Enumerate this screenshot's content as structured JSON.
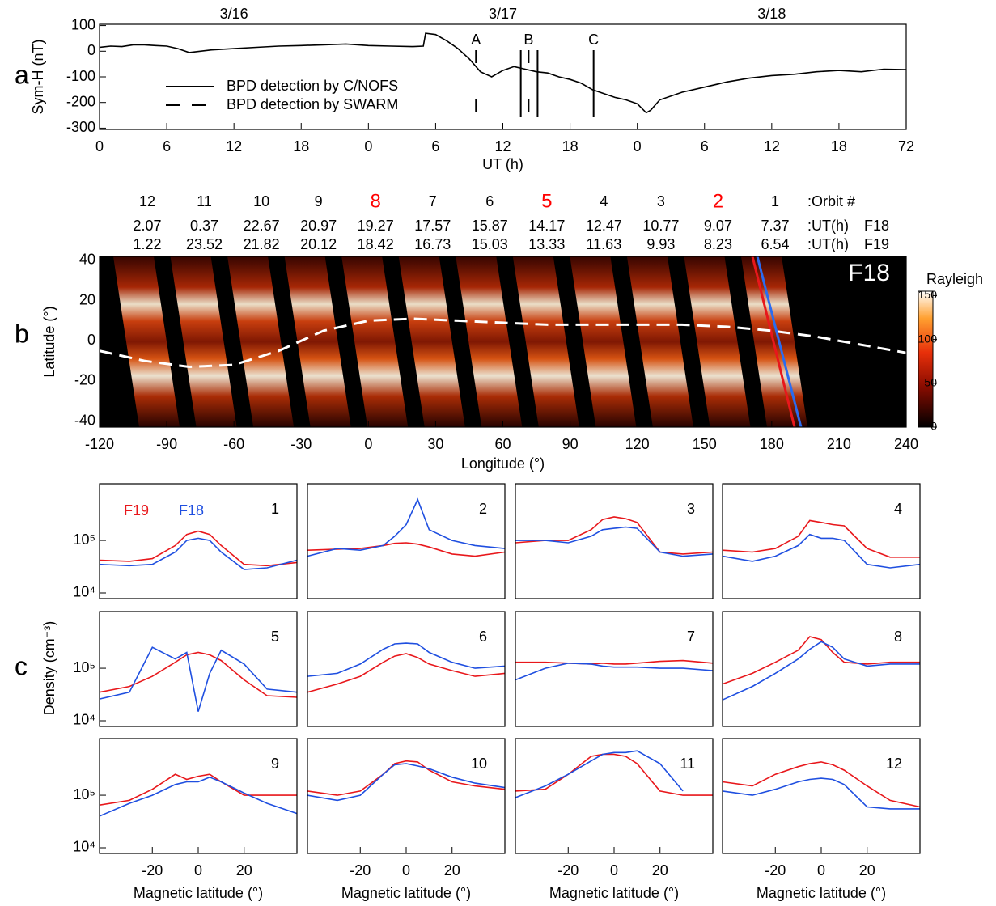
{
  "chart_data": [
    {
      "type": "line",
      "panel_label": "a",
      "y_label": "Sym-H (nT)",
      "x_label": "UT (h)",
      "color": "#000000",
      "x": [
        0,
        1,
        2,
        3,
        4,
        5,
        6,
        7,
        8,
        9,
        10,
        12,
        14,
        16,
        18,
        20,
        22,
        24,
        26,
        28,
        28.9,
        29.1,
        30,
        31,
        32,
        33,
        33.6,
        34,
        35,
        36,
        37,
        38,
        39,
        40,
        41,
        42,
        43,
        44,
        45,
        46,
        47,
        48,
        48.8,
        49.2,
        50,
        52,
        54,
        56,
        58,
        60,
        62,
        64,
        66,
        68,
        70,
        72
      ],
      "values": [
        15,
        20,
        18,
        25,
        25,
        22,
        20,
        10,
        -5,
        0,
        5,
        10,
        15,
        20,
        22,
        25,
        28,
        22,
        20,
        18,
        20,
        70,
        65,
        40,
        10,
        -30,
        -60,
        -80,
        -100,
        -75,
        -60,
        -70,
        -80,
        -85,
        -100,
        -110,
        -125,
        -150,
        -165,
        -180,
        -190,
        -205,
        -240,
        -230,
        -190,
        -160,
        -140,
        -120,
        -105,
        -95,
        -90,
        -80,
        -75,
        -80,
        -70,
        -72
      ],
      "xlim": [
        0,
        72
      ],
      "ylim": [
        -305,
        105
      ],
      "xticks": [
        0,
        6,
        12,
        18,
        {
          "value": 24,
          "label": "0"
        },
        {
          "value": 30,
          "label": "6"
        },
        {
          "value": 36,
          "label": "12"
        },
        {
          "value": 42,
          "label": "18"
        },
        {
          "value": 48,
          "label": "0"
        },
        {
          "value": 54,
          "label": "6"
        },
        {
          "value": 60,
          "label": "12"
        },
        {
          "value": 66,
          "label": "18"
        },
        72
      ],
      "yticks": [
        100,
        0,
        -100,
        -200,
        -300
      ],
      "dates": [
        {
          "label": "3/16",
          "x": 12
        },
        {
          "label": "3/17",
          "x": 36
        },
        {
          "label": "3/18",
          "x": 60
        }
      ],
      "events": [
        {
          "x": 33.6,
          "style": "dashed",
          "label": "A"
        },
        {
          "x": 37.6,
          "style": "solid"
        },
        {
          "x": 38.3,
          "style": "dashed",
          "label": "B"
        },
        {
          "x": 39.1,
          "style": "solid"
        },
        {
          "x": 44.1,
          "style": "solid",
          "label": "C"
        }
      ],
      "legend": [
        {
          "name": "BPD detection by C/NOFS",
          "style": "solid"
        },
        {
          "name": "BPD detection by SWARM",
          "style": "dashed"
        }
      ]
    },
    {
      "type": "map",
      "panel_label": "b",
      "y_label": "Latitude (°)",
      "x_label": "Longitude (°)",
      "inset_label": "F18",
      "xlim": [
        -120,
        240
      ],
      "ylim": [
        -43,
        42
      ],
      "xticks": [
        -120,
        -90,
        -60,
        -30,
        0,
        30,
        60,
        90,
        120,
        150,
        180,
        210,
        240
      ],
      "yticks": [
        40,
        20,
        0,
        -20,
        -40
      ],
      "equator": {
        "lon": [
          -120,
          -100,
          -80,
          -60,
          -40,
          -20,
          0,
          20,
          40,
          60,
          80,
          100,
          120,
          140,
          160,
          180,
          200,
          220,
          240
        ],
        "lat": [
          -5,
          -10,
          -13,
          -12,
          -5,
          5,
          10,
          11,
          10,
          9,
          8,
          8,
          8,
          8,
          7,
          5,
          2,
          -2,
          -6
        ]
      },
      "orbits": [
        12,
        11,
        10,
        9,
        8,
        7,
        6,
        5,
        4,
        3,
        2,
        1
      ],
      "orbit_colors": [
        "#000000",
        "#000000",
        "#000000",
        "#000000",
        "#ff0000",
        "#000000",
        "#000000",
        "#ff0000",
        "#000000",
        "#000000",
        "#ff0000",
        "#000000"
      ],
      "ut_f18": [
        2.07,
        0.37,
        22.67,
        20.97,
        19.27,
        17.57,
        15.87,
        14.17,
        12.47,
        10.77,
        9.07,
        7.37
      ],
      "ut_f19": [
        1.22,
        23.52,
        21.82,
        20.12,
        18.42,
        16.73,
        15.03,
        13.33,
        11.63,
        9.93,
        8.23,
        6.54
      ],
      "row_labels": [
        ":Orbit #",
        ":UT(h)",
        "F18",
        ":UT(h)",
        "F19"
      ],
      "colorbar": {
        "label": "Rayleigh",
        "lim": [
          0,
          155
        ],
        "ticks": [
          0,
          50,
          100,
          150
        ]
      }
    },
    {
      "type": "line",
      "log": true,
      "label": "1",
      "x": [
        -43,
        -30,
        -20,
        -10,
        -5,
        0,
        5,
        10,
        20,
        30,
        43
      ],
      "xlim": [
        -43,
        43
      ],
      "ylim": [
        7800,
        1200000
      ],
      "yticks": [
        {
          "value": 10000,
          "label": "10⁴"
        },
        {
          "value": 100000,
          "label": "10⁵"
        }
      ],
      "series": [
        {
          "name": "F19",
          "color": "#e8171b",
          "values": [
            42000,
            40000,
            45000,
            80000,
            130000,
            150000,
            130000,
            80000,
            35000,
            33000,
            38000
          ]
        },
        {
          "name": "F18",
          "color": "#1f4fe0",
          "values": [
            35000,
            33000,
            35000,
            60000,
            100000,
            110000,
            100000,
            60000,
            28000,
            30000,
            42000
          ]
        }
      ]
    },
    {
      "type": "line",
      "log": true,
      "label": "2",
      "x": [
        -43,
        -30,
        -20,
        -10,
        -5,
        0,
        5,
        10,
        20,
        30,
        43
      ],
      "xlim": [
        -43,
        43
      ],
      "ylim": [
        7800,
        1200000
      ],
      "series": [
        {
          "color": "#e8171b",
          "values": [
            65000,
            68000,
            70000,
            80000,
            88000,
            90000,
            85000,
            75000,
            55000,
            50000,
            60000
          ]
        },
        {
          "color": "#1f4fe0",
          "values": [
            50000,
            70000,
            65000,
            80000,
            120000,
            200000,
            600000,
            160000,
            100000,
            80000,
            70000
          ]
        }
      ]
    },
    {
      "type": "line",
      "log": true,
      "label": "3",
      "x": [
        -43,
        -30,
        -20,
        -10,
        -5,
        0,
        5,
        10,
        20,
        30,
        43
      ],
      "xlim": [
        -43,
        43
      ],
      "ylim": [
        7800,
        1200000
      ],
      "series": [
        {
          "color": "#e8171b",
          "values": [
            90000,
            100000,
            100000,
            160000,
            250000,
            280000,
            260000,
            220000,
            60000,
            55000,
            60000
          ]
        },
        {
          "color": "#1f4fe0",
          "values": [
            100000,
            100000,
            90000,
            120000,
            160000,
            170000,
            180000,
            170000,
            60000,
            50000,
            55000
          ]
        }
      ]
    },
    {
      "type": "line",
      "log": true,
      "label": "4",
      "x": [
        -43,
        -30,
        -20,
        -10,
        -5,
        0,
        5,
        10,
        20,
        30,
        43
      ],
      "xlim": [
        -43,
        43
      ],
      "ylim": [
        7800,
        1200000
      ],
      "series": [
        {
          "color": "#e8171b",
          "values": [
            65000,
            60000,
            70000,
            120000,
            240000,
            220000,
            200000,
            190000,
            70000,
            48000,
            48000
          ]
        },
        {
          "color": "#1f4fe0",
          "values": [
            50000,
            40000,
            50000,
            80000,
            130000,
            110000,
            110000,
            100000,
            35000,
            30000,
            35000
          ]
        }
      ]
    },
    {
      "type": "line",
      "log": true,
      "label": "5",
      "panel_label": "c",
      "y_label": "Density (cm⁻³)",
      "x": [
        -43,
        -30,
        -20,
        -10,
        -5,
        0,
        5,
        10,
        20,
        30,
        43
      ],
      "xlim": [
        -43,
        43
      ],
      "ylim": [
        7800,
        1200000
      ],
      "yticks": [
        {
          "value": 10000,
          "label": "10⁴"
        },
        {
          "value": 100000,
          "label": "10⁵"
        }
      ],
      "series": [
        {
          "color": "#e8171b",
          "values": [
            35000,
            45000,
            70000,
            130000,
            180000,
            200000,
            180000,
            140000,
            60000,
            30000,
            28000
          ]
        },
        {
          "color": "#1f4fe0",
          "values": [
            26000,
            35000,
            250000,
            150000,
            200000,
            15000,
            80000,
            220000,
            120000,
            40000,
            35000
          ]
        }
      ]
    },
    {
      "type": "line",
      "log": true,
      "label": "6",
      "x": [
        -43,
        -30,
        -20,
        -10,
        -5,
        0,
        5,
        10,
        20,
        30,
        43
      ],
      "xlim": [
        -43,
        43
      ],
      "ylim": [
        7800,
        1200000
      ],
      "series": [
        {
          "color": "#e8171b",
          "values": [
            35000,
            50000,
            70000,
            130000,
            170000,
            190000,
            160000,
            120000,
            90000,
            70000,
            80000
          ]
        },
        {
          "color": "#1f4fe0",
          "values": [
            70000,
            80000,
            120000,
            230000,
            290000,
            300000,
            290000,
            200000,
            130000,
            100000,
            110000
          ]
        }
      ]
    },
    {
      "type": "line",
      "log": true,
      "label": "7",
      "x": [
        -43,
        -30,
        -20,
        -10,
        -5,
        0,
        5,
        10,
        20,
        30,
        43
      ],
      "xlim": [
        -43,
        43
      ],
      "ylim": [
        7800,
        1200000
      ],
      "series": [
        {
          "color": "#e8171b",
          "values": [
            130000,
            130000,
            125000,
            120000,
            125000,
            120000,
            120000,
            125000,
            135000,
            140000,
            125000
          ]
        },
        {
          "color": "#1f4fe0",
          "values": [
            60000,
            100000,
            125000,
            120000,
            110000,
            105000,
            105000,
            105000,
            100000,
            100000,
            90000
          ]
        }
      ]
    },
    {
      "type": "line",
      "log": true,
      "label": "8",
      "x": [
        -43,
        -30,
        -20,
        -10,
        -5,
        0,
        5,
        10,
        20,
        30,
        43
      ],
      "xlim": [
        -43,
        43
      ],
      "ylim": [
        7800,
        1200000
      ],
      "series": [
        {
          "color": "#e8171b",
          "values": [
            50000,
            80000,
            130000,
            220000,
            400000,
            350000,
            200000,
            130000,
            120000,
            130000,
            130000
          ]
        },
        {
          "color": "#1f4fe0",
          "values": [
            25000,
            45000,
            80000,
            150000,
            230000,
            320000,
            250000,
            150000,
            110000,
            120000,
            120000
          ]
        }
      ]
    },
    {
      "type": "line",
      "log": true,
      "label": "9",
      "x_label": "Magnetic latitude (°)",
      "x": [
        -43,
        -30,
        -20,
        -10,
        -5,
        0,
        5,
        10,
        20,
        30,
        43
      ],
      "xlim": [
        -43,
        43
      ],
      "ylim": [
        7800,
        1200000
      ],
      "xticks": [
        -20,
        0,
        20
      ],
      "yticks": [
        {
          "value": 10000,
          "label": "10⁴"
        },
        {
          "value": 100000,
          "label": "10⁵"
        }
      ],
      "series": [
        {
          "color": "#e8171b",
          "values": [
            65000,
            80000,
            130000,
            250000,
            200000,
            230000,
            250000,
            180000,
            100000,
            100000,
            100000
          ]
        },
        {
          "color": "#1f4fe0",
          "values": [
            40000,
            70000,
            100000,
            160000,
            180000,
            180000,
            220000,
            180000,
            110000,
            70000,
            45000
          ]
        }
      ]
    },
    {
      "type": "line",
      "log": true,
      "label": "10",
      "x_label": "Magnetic latitude (°)",
      "x": [
        -43,
        -30,
        -20,
        -10,
        -5,
        0,
        5,
        10,
        20,
        30,
        43
      ],
      "xlim": [
        -43,
        43
      ],
      "ylim": [
        7800,
        1200000
      ],
      "xticks": [
        -20,
        0,
        20
      ],
      "series": [
        {
          "color": "#e8171b",
          "values": [
            120000,
            100000,
            120000,
            250000,
            400000,
            450000,
            430000,
            300000,
            180000,
            150000,
            130000
          ]
        },
        {
          "color": "#1f4fe0",
          "values": [
            100000,
            80000,
            100000,
            250000,
            380000,
            400000,
            360000,
            320000,
            220000,
            170000,
            140000
          ]
        }
      ]
    },
    {
      "type": "line",
      "log": true,
      "label": "11",
      "x_label": "Magnetic latitude (°)",
      "x": [
        -43,
        -30,
        -20,
        -10,
        -5,
        0,
        5,
        10,
        20,
        30,
        43
      ],
      "xlim": [
        -43,
        43
      ],
      "ylim": [
        7800,
        1200000
      ],
      "xticks": [
        -20,
        0,
        20
      ],
      "series": [
        {
          "color": "#e8171b",
          "values": [
            120000,
            130000,
            250000,
            550000,
            600000,
            600000,
            550000,
            400000,
            120000,
            100000,
            100000
          ]
        },
        {
          "color": "#1f4fe0",
          "values": [
            90000,
            150000,
            250000,
            450000,
            600000,
            650000,
            650000,
            700000,
            400000,
            120000,
            null
          ]
        }
      ]
    },
    {
      "type": "line",
      "log": true,
      "label": "12",
      "x_label": "Magnetic latitude (°)",
      "x": [
        -43,
        -30,
        -20,
        -10,
        -5,
        0,
        5,
        10,
        20,
        30,
        43
      ],
      "xlim": [
        -43,
        43
      ],
      "ylim": [
        7800,
        1200000
      ],
      "xticks": [
        -20,
        0,
        20
      ],
      "series": [
        {
          "color": "#e8171b",
          "values": [
            180000,
            150000,
            250000,
            350000,
            400000,
            430000,
            380000,
            300000,
            150000,
            80000,
            60000
          ]
        },
        {
          "color": "#1f4fe0",
          "values": [
            120000,
            100000,
            130000,
            180000,
            200000,
            210000,
            200000,
            160000,
            60000,
            55000,
            55000
          ]
        }
      ]
    }
  ]
}
